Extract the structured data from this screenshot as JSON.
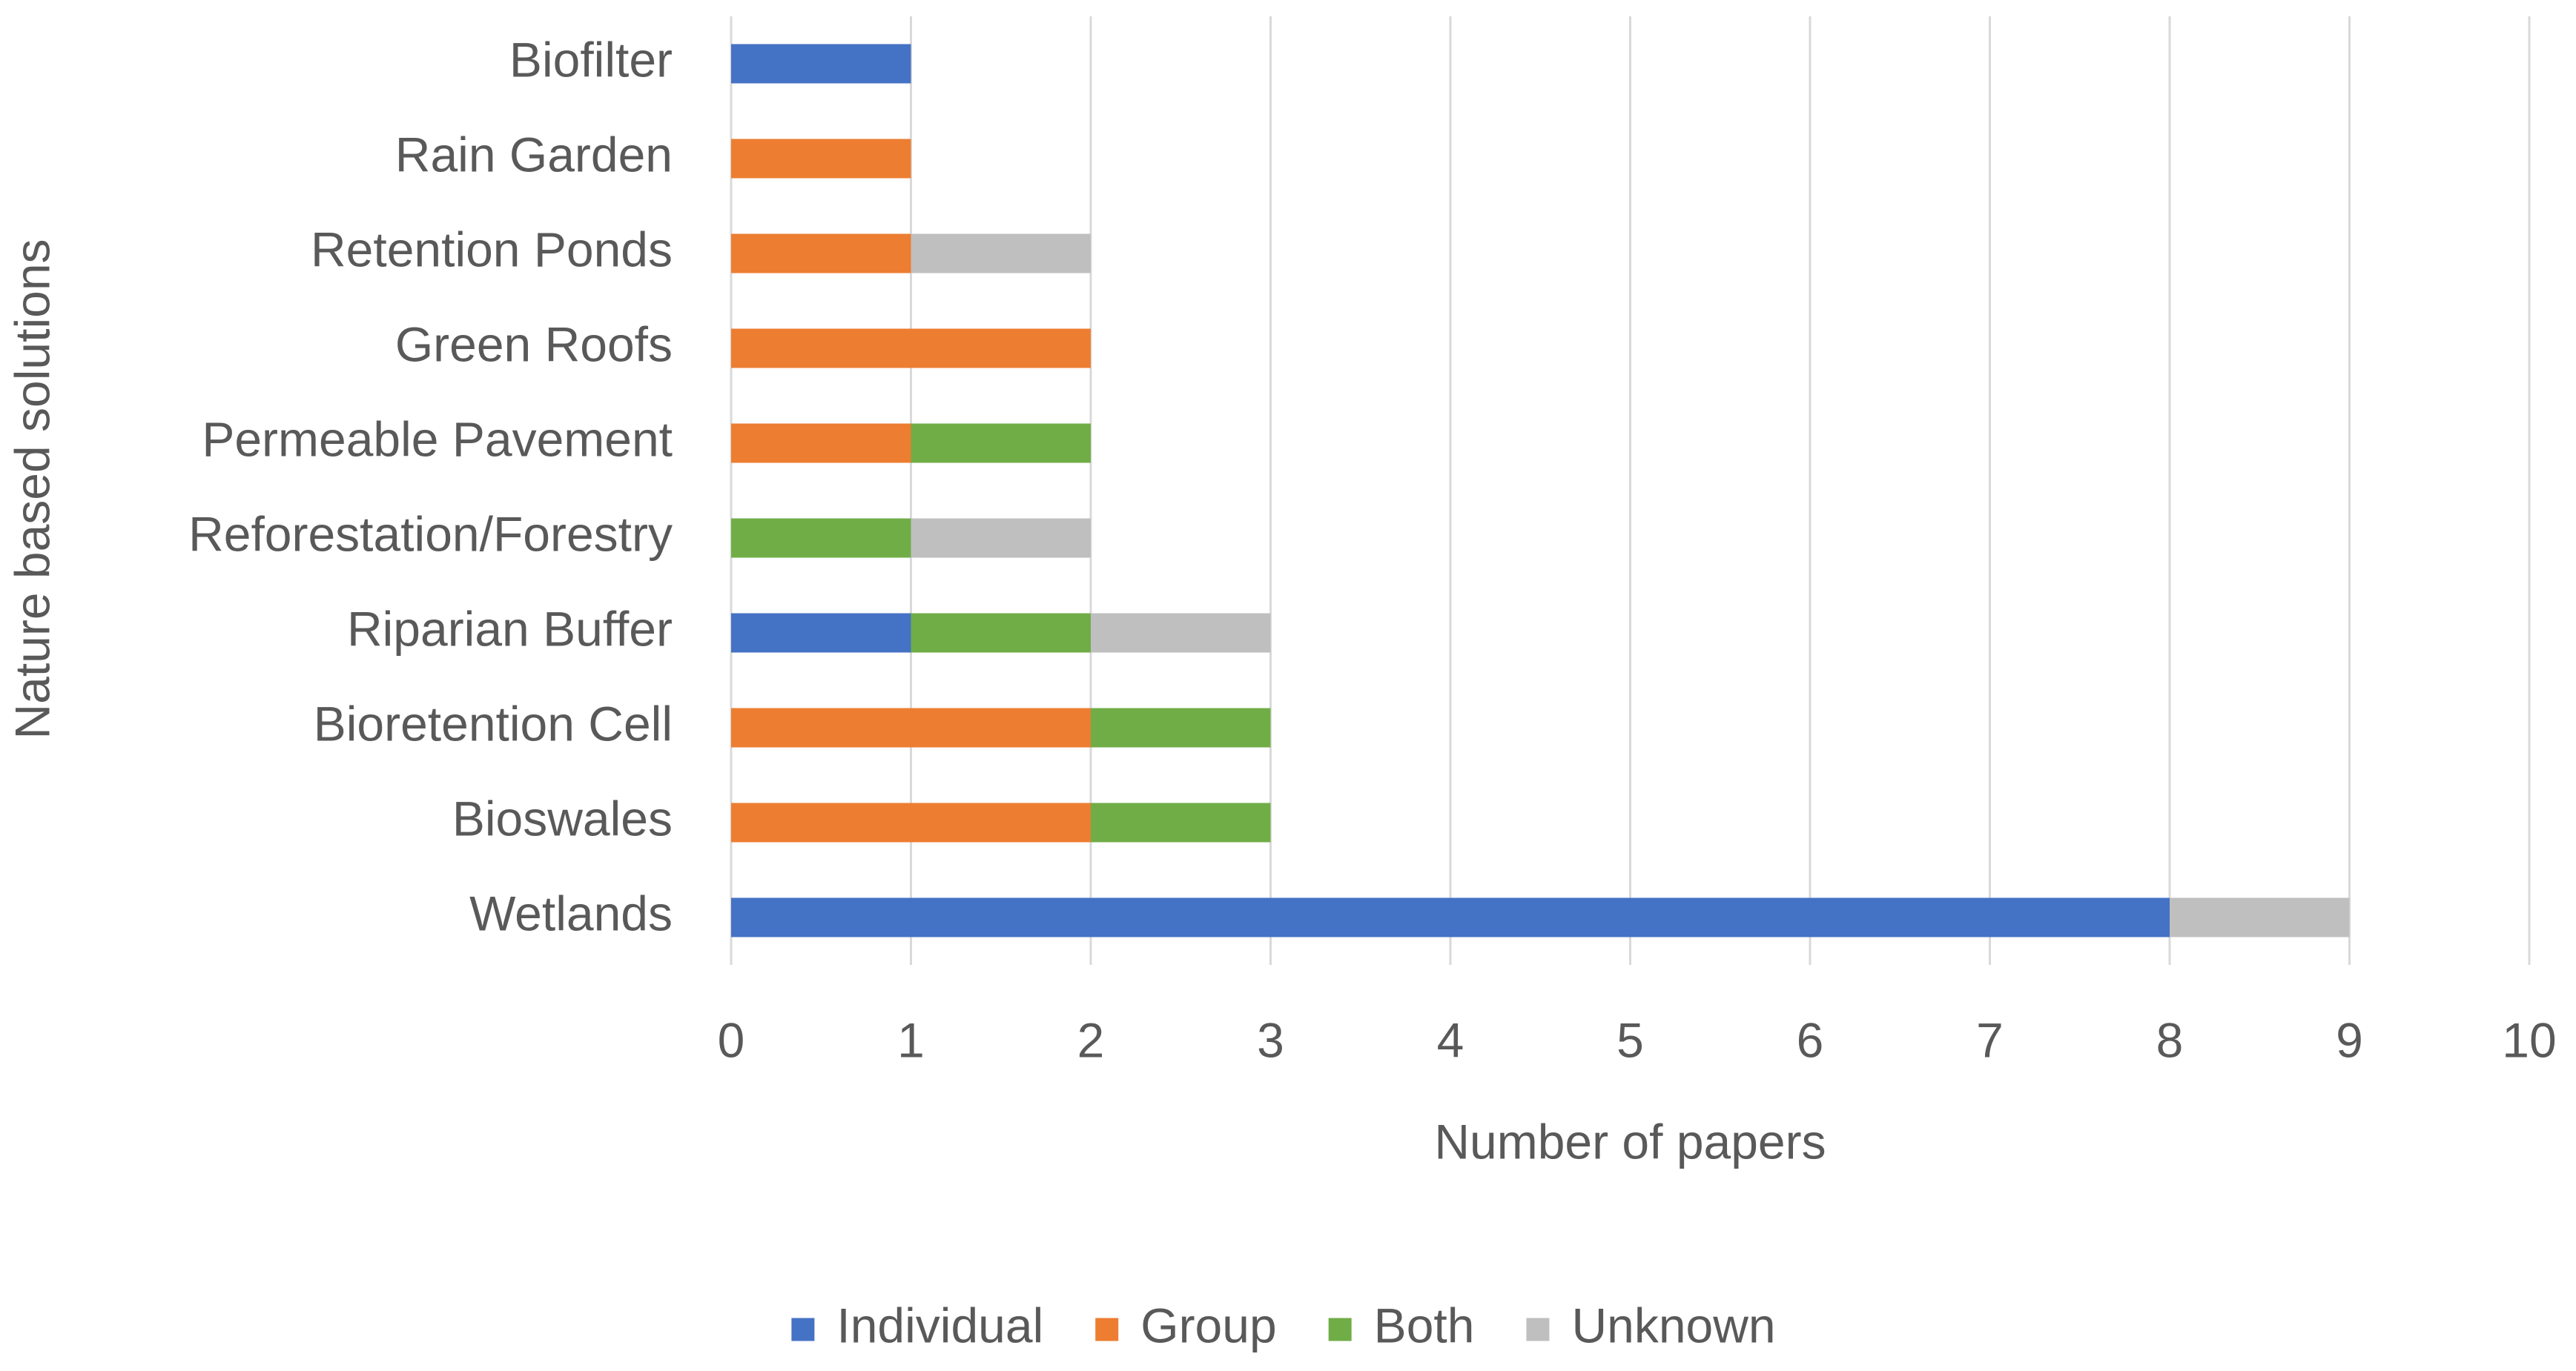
{
  "chart_data": {
    "type": "stacked-barh",
    "xlabel": "Number of papers",
    "ylabel": "Nature based solutions",
    "categories": [
      "Biofilter",
      "Rain Garden",
      "Retention Ponds",
      "Green Roofs",
      "Permeable Pavement",
      "Reforestation/Forestry",
      "Riparian Buffer",
      "Bioretention Cell",
      "Bioswales",
      "Wetlands"
    ],
    "series": [
      {
        "name": "Individual",
        "color": "#4472c4",
        "values": [
          1,
          0,
          0,
          0,
          0,
          0,
          1,
          0,
          0,
          8
        ]
      },
      {
        "name": "Group",
        "color": "#ed7d31",
        "values": [
          0,
          1,
          1,
          2,
          1,
          0,
          0,
          2,
          2,
          0
        ]
      },
      {
        "name": "Both",
        "color": "#70ad47",
        "values": [
          0,
          0,
          0,
          0,
          1,
          1,
          1,
          1,
          1,
          0
        ]
      },
      {
        "name": "Unknown",
        "color": "#bfbfbf",
        "values": [
          0,
          0,
          1,
          0,
          0,
          1,
          1,
          0,
          0,
          1
        ]
      }
    ],
    "xlim": [
      0,
      10
    ],
    "xticks": [
      0,
      1,
      2,
      3,
      4,
      5,
      6,
      7,
      8,
      9,
      10
    ],
    "grid": true,
    "legend": "bottom"
  }
}
